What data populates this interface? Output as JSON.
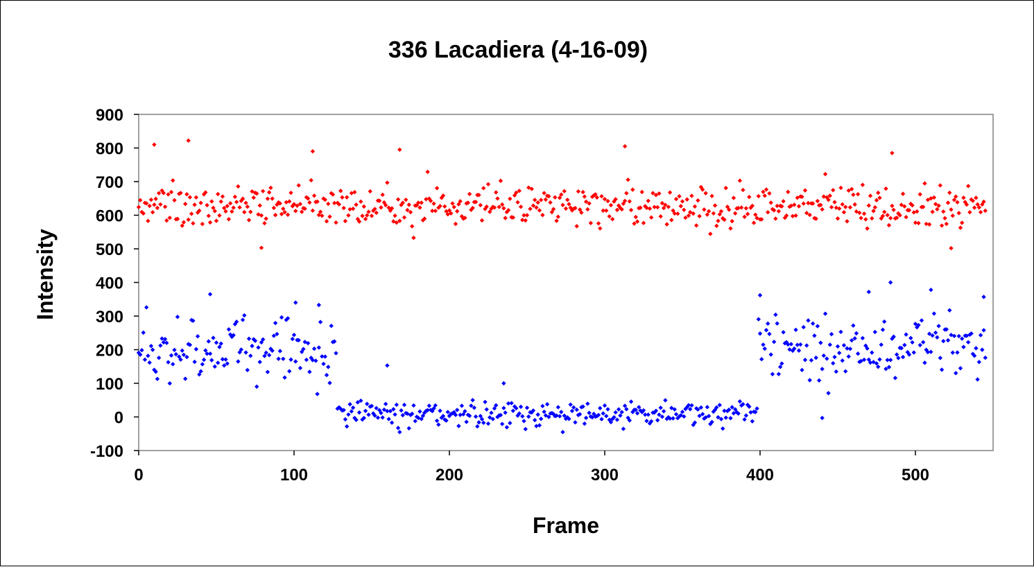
{
  "chart_data": {
    "type": "scatter",
    "title": "336 Lacadiera (4-16-09)",
    "xlabel": "Frame",
    "ylabel": "Intensity",
    "xlim": [
      0,
      550
    ],
    "ylim": [
      -100,
      900
    ],
    "x_ticks": [
      0,
      100,
      200,
      300,
      400,
      500
    ],
    "y_ticks": [
      -100,
      0,
      100,
      200,
      300,
      400,
      500,
      600,
      700,
      800,
      900
    ],
    "grid": false,
    "legend": "none",
    "series": [
      {
        "color": "#ff0000",
        "marker": "diamond",
        "frames": [
          0,
          545
        ],
        "segments": [
          {
            "from": 0,
            "to": 545,
            "mean": 630,
            "spread": 45
          }
        ],
        "notable_points": [
          {
            "x": 10,
            "y": 810
          },
          {
            "x": 32,
            "y": 822
          },
          {
            "x": 112,
            "y": 790
          },
          {
            "x": 168,
            "y": 795
          },
          {
            "x": 313,
            "y": 805
          },
          {
            "x": 485,
            "y": 785
          },
          {
            "x": 523,
            "y": 502
          },
          {
            "x": 79,
            "y": 503
          }
        ]
      },
      {
        "color": "#0000ff",
        "marker": "diamond",
        "frames": [
          0,
          545
        ],
        "segments": [
          {
            "from": 0,
            "to": 127,
            "mean": 200,
            "spread": 65
          },
          {
            "from": 128,
            "to": 398,
            "mean": 10,
            "spread": 25
          },
          {
            "from": 399,
            "to": 545,
            "mean": 205,
            "spread": 70
          }
        ],
        "notable_points": [
          {
            "x": 46,
            "y": 365
          },
          {
            "x": 101,
            "y": 340
          },
          {
            "x": 116,
            "y": 333
          },
          {
            "x": 160,
            "y": 153
          },
          {
            "x": 235,
            "y": 100
          },
          {
            "x": 400,
            "y": 362
          },
          {
            "x": 440,
            "y": -3
          },
          {
            "x": 470,
            "y": 372
          },
          {
            "x": 484,
            "y": 400
          },
          {
            "x": 510,
            "y": 378
          },
          {
            "x": 544,
            "y": 357
          }
        ]
      }
    ]
  }
}
